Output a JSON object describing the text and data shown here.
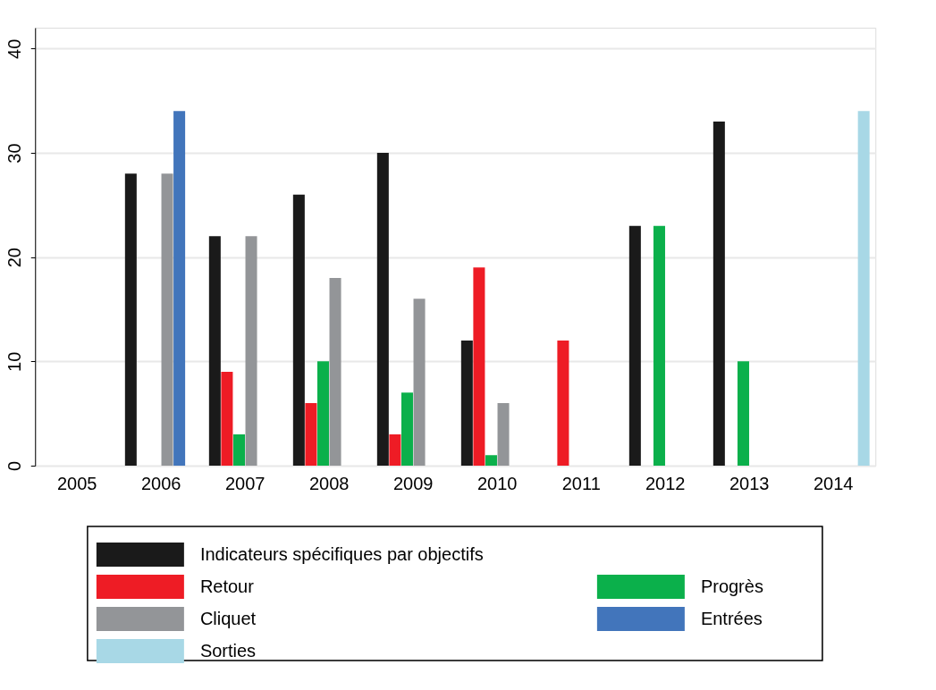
{
  "chart_data": {
    "type": "bar",
    "categories": [
      "2005",
      "2006",
      "2007",
      "2008",
      "2009",
      "2010",
      "2011",
      "2012",
      "2013",
      "2014"
    ],
    "series": [
      {
        "name": "Indicateurs spécifiques par objectifs",
        "color": "#1a1a1a",
        "values": [
          null,
          28,
          22,
          26,
          30,
          12,
          null,
          23,
          33,
          null
        ]
      },
      {
        "name": "Retour",
        "color": "#ee1c25",
        "values": [
          null,
          null,
          9,
          6,
          3,
          19,
          12,
          null,
          null,
          null
        ]
      },
      {
        "name": "Progrès",
        "color": "#0bb04b",
        "values": [
          null,
          null,
          3,
          10,
          7,
          1,
          null,
          23,
          10,
          null
        ]
      },
      {
        "name": "Cliquet",
        "color": "#939598",
        "values": [
          null,
          28,
          22,
          18,
          16,
          6,
          null,
          null,
          null,
          null
        ]
      },
      {
        "name": "Entrées",
        "color": "#4275bb",
        "values": [
          null,
          34,
          null,
          null,
          null,
          null,
          null,
          null,
          null,
          null
        ]
      },
      {
        "name": "Sorties",
        "color": "#a8d8e6",
        "values": [
          null,
          null,
          null,
          null,
          null,
          null,
          null,
          null,
          null,
          34
        ]
      }
    ],
    "ylim": [
      0,
      42
    ],
    "yticks": [
      0,
      10,
      20,
      30,
      40
    ],
    "grid": "y",
    "legend": "bottom"
  }
}
